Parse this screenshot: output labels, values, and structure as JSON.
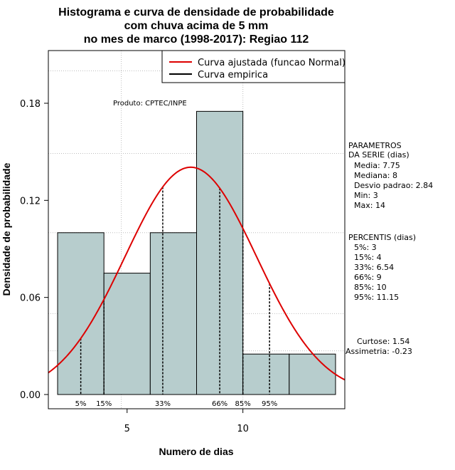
{
  "chart_data": {
    "type": "bar",
    "title_lines": [
      "Histograma e curva de densidade de probabilidade",
      "com chuva acima de 5 mm",
      "no mes de marco (1998-2017): Regiao 112"
    ],
    "xlabel": "Numero de dias",
    "ylabel": "Densidade de probabilidade",
    "xlim": [
      1.6,
      14.4
    ],
    "ylim": [
      0,
      0.21
    ],
    "x_ticks": [
      5,
      10
    ],
    "y_ticks": [
      "0.00",
      "0.06",
      "0.12",
      "0.18"
    ],
    "grid": true,
    "credit": "Produto: CPTEC/INPE",
    "histogram": [
      {
        "x0": 2,
        "x1": 4,
        "density": 0.1
      },
      {
        "x0": 4,
        "x1": 6,
        "density": 0.075
      },
      {
        "x0": 6,
        "x1": 8,
        "density": 0.1
      },
      {
        "x0": 8,
        "x1": 10,
        "density": 0.175
      },
      {
        "x0": 10,
        "x1": 12,
        "density": 0.025
      },
      {
        "x0": 12,
        "x1": 14,
        "density": 0.025
      }
    ],
    "series": [
      {
        "name": "Curva ajustada (funcao Normal)",
        "color": "#dd0000",
        "type": "normal",
        "mean": 7.75,
        "sd": 2.84
      },
      {
        "name": "Curva empirica",
        "color": "#000000"
      }
    ],
    "legend_position": "top-right",
    "percentile_lines": [
      {
        "label": "5%",
        "x": 3
      },
      {
        "label": "15%",
        "x": 4
      },
      {
        "label": "33%",
        "x": 6.54
      },
      {
        "label": "66%",
        "x": 9
      },
      {
        "label": "85%",
        "x": 10
      },
      {
        "label": "95%",
        "x": 11.15
      }
    ],
    "parameters": {
      "heading": [
        "PARAMETROS",
        "DA SERIE (dias)"
      ],
      "items": [
        "Media: 7.75",
        "Mediana: 8",
        "Desvio padrao: 2.84",
        "Min: 3",
        "Max: 14"
      ]
    },
    "percentis": {
      "heading": "PERCENTIS (dias)",
      "items": [
        "5%: 3",
        "15%: 4",
        "33%: 6.54",
        "66%: 9",
        "85%: 10",
        "95%: 11.15"
      ]
    },
    "shape": {
      "items": [
        "Curtose: 1.54",
        "Assimetria: -0.23"
      ]
    },
    "colors": {
      "bar_fill": "#b7cdcd",
      "grid": "#bdbdbd"
    }
  }
}
